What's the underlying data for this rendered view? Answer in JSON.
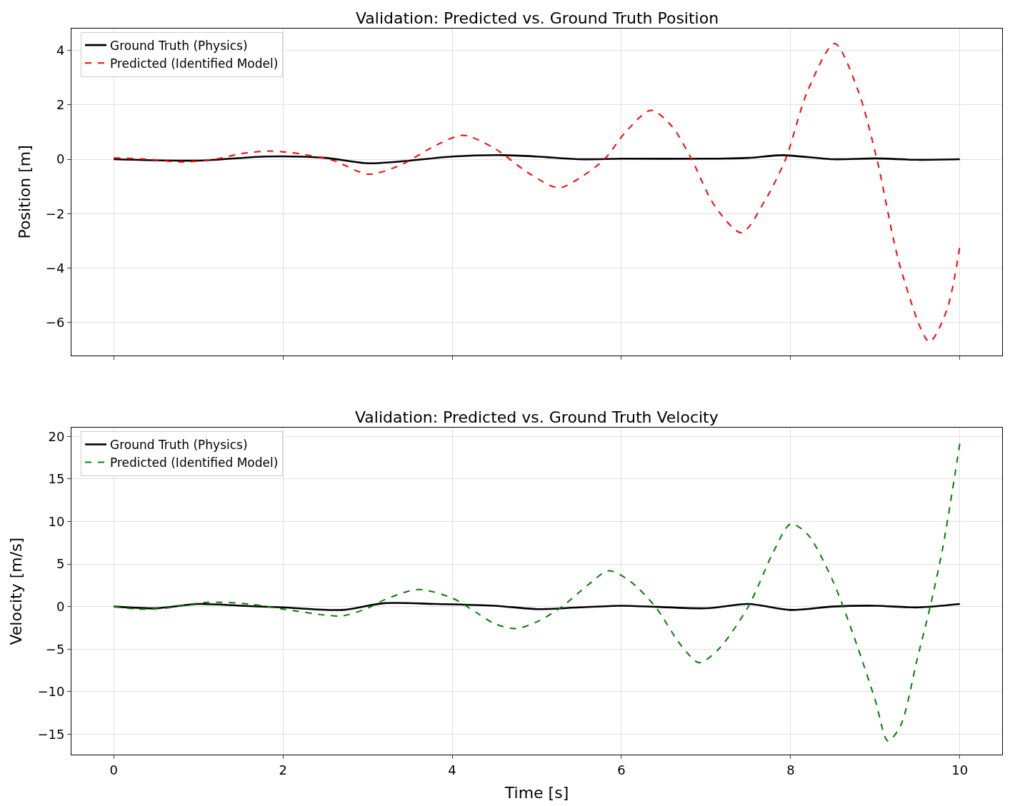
{
  "chart_data": [
    {
      "type": "line",
      "title": "Validation: Predicted vs. Ground Truth Position",
      "ylabel": "Position [m]",
      "xlim": [
        -0.5,
        10.5
      ],
      "xticks": [
        0,
        2,
        4,
        6,
        8,
        10
      ],
      "ylim": [
        -7.2,
        4.8
      ],
      "yticks": [
        -6,
        -4,
        -2,
        0,
        2,
        4
      ],
      "grid": true,
      "legend": "top left",
      "tick_labels": "y",
      "series": [
        {
          "name": "Ground Truth (Physics)",
          "color": "#000000",
          "line_style": "solid",
          "x": [
            0,
            1,
            1.8,
            2.5,
            3.0,
            3.5,
            4.0,
            4.6,
            5.0,
            5.5,
            6.0,
            7.0,
            7.5,
            7.9,
            8.5,
            9.0,
            9.5,
            10.0
          ],
          "values": [
            0,
            -0.05,
            0.1,
            0.05,
            -0.15,
            -0.05,
            0.1,
            0.15,
            0.1,
            0,
            0.02,
            0.02,
            0.05,
            0.15,
            0,
            0.03,
            -0.02,
            0
          ]
        },
        {
          "name": "Predicted (Identified Model)",
          "color": "#ff0000",
          "line_style": "dashed",
          "x": [
            0,
            0.4,
            0.8,
            1.2,
            1.5,
            1.85,
            2.2,
            2.6,
            3.01,
            3.4,
            3.8,
            4.13,
            4.5,
            4.9,
            5.26,
            5.55,
            5.8,
            6.05,
            6.35,
            6.6,
            6.83,
            7.1,
            7.42,
            7.7,
            7.94,
            8.2,
            8.52,
            8.8,
            9.02,
            9.3,
            9.64,
            9.85,
            10.0
          ],
          "values": [
            0.05,
            0,
            -0.1,
            0,
            0.2,
            0.3,
            0.2,
            -0.05,
            -0.55,
            -0.2,
            0.5,
            0.88,
            0.4,
            -0.5,
            -1.05,
            -0.6,
            0,
            1.0,
            1.8,
            1.2,
            0,
            -1.7,
            -2.7,
            -1.5,
            0,
            2.5,
            4.25,
            2.5,
            0,
            -4.0,
            -6.7,
            -5.5,
            -3.2
          ]
        }
      ]
    },
    {
      "type": "line",
      "title": "Validation: Predicted vs. Ground Truth Velocity",
      "xlabel": "Time [s]",
      "ylabel": "Velocity [m/s]",
      "xlim": [
        -0.5,
        10.5
      ],
      "xticks": [
        0,
        2,
        4,
        6,
        8,
        10
      ],
      "ylim": [
        -17.4,
        21
      ],
      "yticks": [
        -15,
        -10,
        -5,
        0,
        5,
        10,
        15,
        20
      ],
      "grid": true,
      "legend": "top left",
      "series": [
        {
          "name": "Ground Truth (Physics)",
          "color": "#000000",
          "line_style": "solid",
          "x": [
            0,
            0.5,
            1,
            1.5,
            2,
            2.7,
            3.2,
            3.8,
            4.5,
            5,
            5.5,
            6,
            7,
            7.5,
            8,
            8.5,
            9,
            9.5,
            10
          ],
          "values": [
            0,
            -0.2,
            0.3,
            0.1,
            -0.1,
            -0.4,
            0.4,
            0.3,
            0.1,
            -0.3,
            -0.1,
            0.1,
            -0.2,
            0.3,
            -0.4,
            0,
            0.1,
            -0.1,
            0.3
          ]
        },
        {
          "name": "Predicted (Identified Model)",
          "color": "#008000",
          "line_style": "dashed",
          "x": [
            0,
            0.3,
            0.6,
            1.1,
            1.6,
            2.0,
            2.5,
            2.7,
            3.0,
            3.2,
            3.6,
            4.0,
            4.3,
            4.5,
            4.75,
            5.0,
            5.3,
            5.6,
            5.85,
            6.1,
            6.4,
            6.7,
            6.92,
            7.15,
            7.5,
            7.8,
            8.0,
            8.2,
            8.5,
            8.8,
            9.0,
            9.15,
            9.3,
            9.5,
            9.65,
            9.8,
            10.0
          ],
          "values": [
            0,
            -0.3,
            -0.2,
            0.5,
            0.3,
            -0.3,
            -1.0,
            -1.1,
            -0.2,
            0.8,
            2.0,
            1.0,
            -0.8,
            -2.0,
            -2.6,
            -1.8,
            0,
            2.5,
            4.2,
            3.0,
            0,
            -4.5,
            -6.6,
            -5.0,
            0,
            6.5,
            9.7,
            8.5,
            3,
            -5,
            -11,
            -15.8,
            -14,
            -6,
            0,
            7,
            19.2
          ]
        }
      ]
    }
  ]
}
